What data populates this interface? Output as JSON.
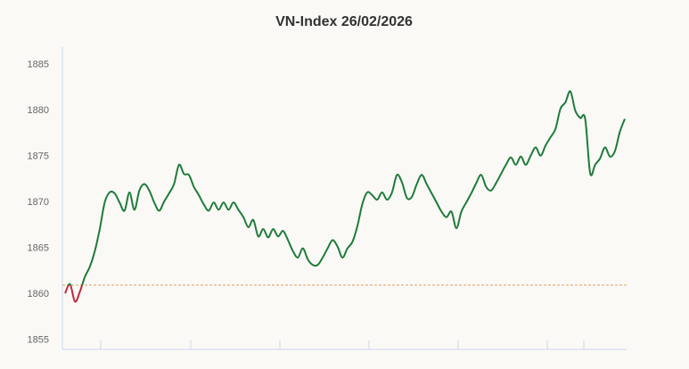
{
  "chart_data": {
    "type": "line",
    "title": "VN-Index 26/02/2026",
    "values": [
      1860.1,
      1861.1,
      1859.2,
      1860.3,
      1861.9,
      1863.0,
      1864.7,
      1867.1,
      1870.0,
      1871.1,
      1871.0,
      1870.0,
      1869.1,
      1871.1,
      1869.2,
      1871.3,
      1872.0,
      1871.3,
      1870.0,
      1869.1,
      1870.1,
      1871.0,
      1872.0,
      1874.1,
      1873.1,
      1873.0,
      1871.7,
      1870.8,
      1869.8,
      1869.1,
      1870.0,
      1869.2,
      1870.0,
      1869.2,
      1870.0,
      1869.2,
      1868.4,
      1867.3,
      1868.1,
      1866.3,
      1867.1,
      1866.2,
      1867.1,
      1866.3,
      1866.9,
      1865.9,
      1864.7,
      1864.0,
      1865.0,
      1863.8,
      1863.2,
      1863.2,
      1864.0,
      1865.0,
      1865.9,
      1865.2,
      1864.0,
      1865.0,
      1865.7,
      1867.4,
      1869.8,
      1871.1,
      1870.8,
      1870.3,
      1871.1,
      1870.3,
      1871.1,
      1873.0,
      1872.2,
      1870.5,
      1870.6,
      1872.0,
      1873.0,
      1872.0,
      1871.0,
      1870.0,
      1869.0,
      1868.4,
      1869.0,
      1867.2,
      1869.0,
      1870.0,
      1871.0,
      1872.1,
      1873.0,
      1871.7,
      1871.3,
      1872.1,
      1873.1,
      1874.1,
      1874.9,
      1874.1,
      1875.0,
      1874.1,
      1875.1,
      1876.0,
      1875.1,
      1876.2,
      1877.1,
      1878.0,
      1880.2,
      1880.9,
      1882.1,
      1880.0,
      1879.2,
      1879.1,
      1873.2,
      1874.1,
      1874.8,
      1876.0,
      1875.0,
      1875.6,
      1877.7,
      1879.1
    ],
    "reference": 1861.0,
    "color": "#1e7b3a",
    "below_color": "#c0283a",
    "reference_color": "#d9a25f",
    "ylim": [
      1854,
      1887
    ],
    "yticks": [
      1855,
      1860,
      1865,
      1870,
      1875,
      1880,
      1885
    ]
  }
}
